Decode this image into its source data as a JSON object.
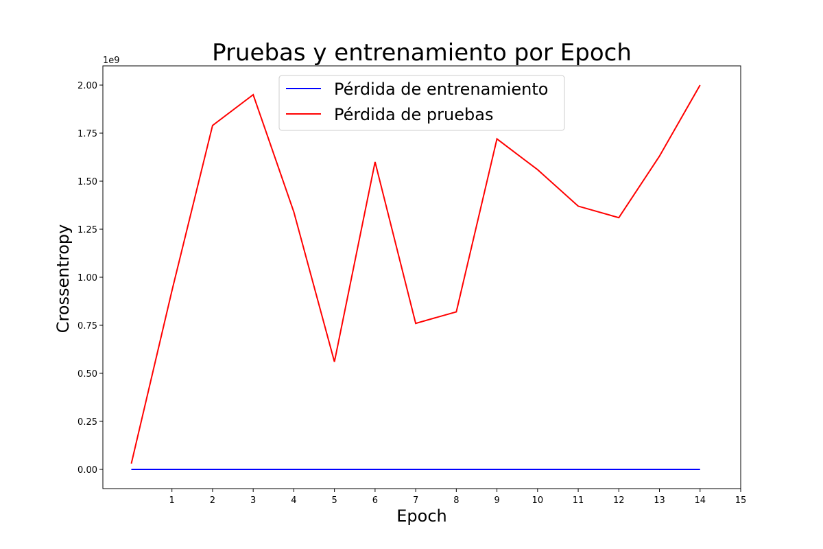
{
  "chart_data": {
    "type": "line",
    "title": "Pruebas y entrenamiento por Epoch",
    "xlabel": "Epoch",
    "ylabel": "Crossentropy",
    "y_offset_label": "1e9",
    "xlim": [
      -0.7,
      15
    ],
    "ylim": [
      -0.1,
      2.1
    ],
    "xticks": [
      1,
      2,
      3,
      4,
      5,
      6,
      7,
      8,
      9,
      10,
      11,
      12,
      13,
      14,
      15
    ],
    "xtick_labels": [
      "1",
      "2",
      "3",
      "4",
      "5",
      "6",
      "7",
      "8",
      "9",
      "10",
      "11",
      "12",
      "13",
      "14",
      "15"
    ],
    "yticks": [
      0.0,
      0.25,
      0.5,
      0.75,
      1.0,
      1.25,
      1.5,
      1.75,
      2.0
    ],
    "ytick_labels": [
      "0.00",
      "0.25",
      "0.50",
      "0.75",
      "1.00",
      "1.25",
      "1.50",
      "1.75",
      "2.00"
    ],
    "legend_position": "top-center",
    "grid": false,
    "x": [
      0,
      1,
      2,
      3,
      4,
      5,
      6,
      7,
      8,
      9,
      10,
      11,
      12,
      13,
      14
    ],
    "series": [
      {
        "name": "Pérdida de entrenamiento",
        "color": "#0000ff",
        "values": [
          0,
          0,
          0,
          0,
          0,
          0,
          0,
          0,
          0,
          0,
          0,
          0,
          0,
          0,
          0
        ]
      },
      {
        "name": "Pérdida de pruebas",
        "color": "#ff0000",
        "values": [
          0.03,
          0.93,
          1.79,
          1.95,
          1.34,
          0.56,
          1.6,
          0.76,
          0.82,
          1.72,
          1.56,
          1.37,
          1.31,
          1.63,
          2.0
        ]
      }
    ]
  }
}
